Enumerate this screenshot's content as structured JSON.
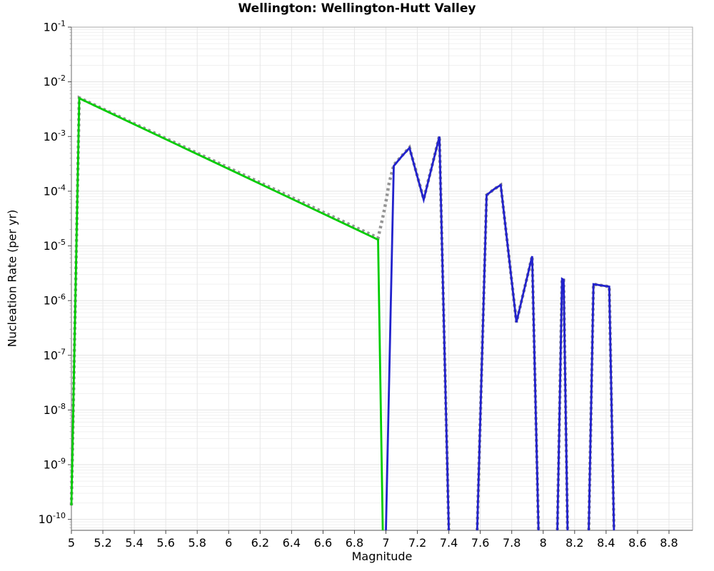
{
  "figure": {
    "window": "chart-figure"
  },
  "chart_data": {
    "type": "line",
    "title": "Wellington: Wellington-Hutt Valley",
    "xlabel": "Magnitude",
    "ylabel": "Nucleation Rate (per yr)",
    "x_axis": {
      "min": 5.0,
      "max": 8.95,
      "tick_values": [
        5,
        5.2,
        5.4,
        5.6,
        5.8,
        6,
        6.2,
        6.4,
        6.6,
        6.8,
        7,
        7.2,
        7.4,
        7.6,
        7.8,
        8,
        8.2,
        8.4,
        8.6,
        8.8
      ],
      "tick_labels": [
        "5",
        "5.2",
        "5.4",
        "5.6",
        "5.8",
        "6",
        "6.2",
        "6.4",
        "6.6",
        "6.8",
        "7",
        "7.2",
        "7.4",
        "7.6",
        "7.8",
        "8",
        "8.2",
        "8.4",
        "8.6",
        "8.8"
      ]
    },
    "y_axis": {
      "scale": "log",
      "top_value": 0.1,
      "bottom_tick_value": 1e-10,
      "edge_exponent": -10.2,
      "tick_exponents": [
        -1,
        -2,
        -3,
        -4,
        -5,
        -6,
        -7,
        -8,
        -9,
        -10
      ],
      "tick_label_base": "10"
    },
    "grid": {
      "vertical_step": 0.2,
      "horizontal_major": "decades",
      "horizontal_minor": "log 2-9 per decade",
      "background": "#ffffff"
    },
    "legend": "none",
    "colors": {
      "green_line": "#00CC00",
      "blue_line": "#2222CC",
      "gray_dotted_line": "#949494",
      "grid_major": "#E2E2E2",
      "grid_minor": "#F0F0F0",
      "grid_vertical": "#E7E7E7",
      "border": "#AAAAAA",
      "axis": "#777777",
      "tick": "#444444",
      "text": "#000000"
    },
    "series": [
      {
        "name": "gray-dotted-total",
        "color": "#949494",
        "style": "dotted",
        "width": 4.5,
        "segments": [
          [
            [
              5.0,
              1.8e-10
            ],
            [
              5.05,
              0.0051
            ],
            [
              6.95,
              1.4e-05
            ],
            [
              6.98,
              3.3e-05
            ],
            [
              7.0,
              6.4e-05
            ],
            [
              7.02,
              0.00014
            ],
            [
              7.05,
              0.0003
            ],
            [
              7.1,
              0.00044
            ],
            [
              7.15,
              0.00063
            ],
            [
              7.24,
              7.2e-05
            ],
            [
              7.34,
              0.00102
            ],
            [
              7.4,
              0
            ]
          ],
          [
            [
              7.58,
              0
            ],
            [
              7.64,
              8.5e-05
            ],
            [
              7.69,
              0.00011
            ],
            [
              7.73,
              0.00013
            ],
            [
              7.83,
              4e-07
            ],
            [
              7.93,
              6.5e-06
            ],
            [
              7.97,
              0
            ]
          ],
          [
            [
              8.09,
              0
            ],
            [
              8.12,
              2.5e-06
            ],
            [
              8.13,
              2.4e-06
            ],
            [
              8.155,
              0
            ]
          ],
          [
            [
              8.29,
              0
            ],
            [
              8.32,
              2e-06
            ],
            [
              8.42,
              1.8e-06
            ],
            [
              8.45,
              0
            ]
          ]
        ]
      },
      {
        "name": "green-line",
        "color": "#00CC00",
        "style": "solid",
        "width": 2.8,
        "segments": [
          [
            [
              5.0,
              1.8e-10
            ],
            [
              5.05,
              0.005
            ],
            [
              6.95,
              1.3e-05
            ],
            [
              6.98,
              0
            ]
          ]
        ]
      },
      {
        "name": "blue-line",
        "color": "#2222CC",
        "style": "solid",
        "width": 2.8,
        "segments": [
          [
            [
              7.0,
              0
            ],
            [
              7.05,
              0.00029
            ],
            [
              7.1,
              0.00043
            ],
            [
              7.15,
              0.00062
            ],
            [
              7.24,
              7e-05
            ],
            [
              7.34,
              0.001
            ],
            [
              7.4,
              0
            ]
          ],
          [
            [
              7.58,
              0
            ],
            [
              7.64,
              8.5e-05
            ],
            [
              7.69,
              0.00011
            ],
            [
              7.73,
              0.00013
            ],
            [
              7.83,
              4e-07
            ],
            [
              7.93,
              6.5e-06
            ],
            [
              7.97,
              0
            ]
          ],
          [
            [
              8.09,
              0
            ],
            [
              8.12,
              2.5e-06
            ],
            [
              8.13,
              2.4e-06
            ],
            [
              8.155,
              0
            ]
          ],
          [
            [
              8.29,
              0
            ],
            [
              8.32,
              2e-06
            ],
            [
              8.42,
              1.8e-06
            ],
            [
              8.45,
              0
            ]
          ]
        ]
      }
    ]
  }
}
